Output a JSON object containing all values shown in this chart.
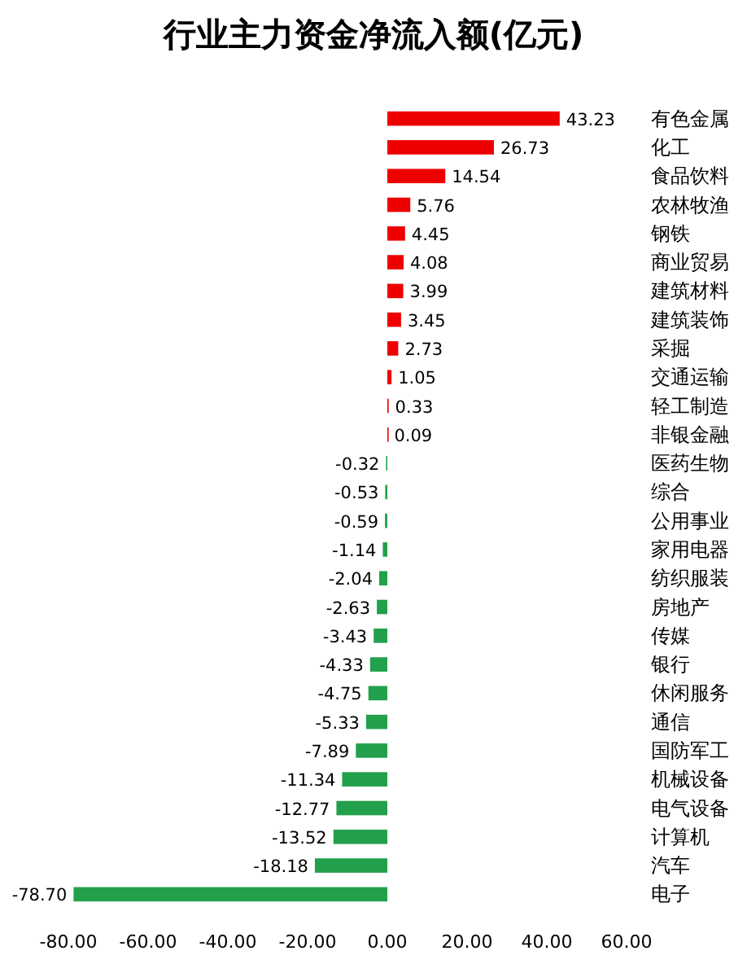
{
  "chart_data": {
    "type": "bar",
    "orientation": "horizontal",
    "title": "行业主力资金净流入额(亿元)",
    "categories": [
      "有色金属",
      "化工",
      "食品饮料",
      "农林牧渔",
      "钢铁",
      "商业贸易",
      "建筑材料",
      "建筑装饰",
      "采掘",
      "交通运输",
      "轻工制造",
      "非银金融",
      "医药生物",
      "综合",
      "公用事业",
      "家用电器",
      "纺织服装",
      "房地产",
      "传媒",
      "银行",
      "休闲服务",
      "通信",
      "国防军工",
      "机械设备",
      "电气设备",
      "计算机",
      "汽车",
      "电子"
    ],
    "values": [
      43.23,
      26.73,
      14.54,
      5.76,
      4.45,
      4.08,
      3.99,
      3.45,
      2.73,
      1.05,
      0.33,
      0.09,
      -0.32,
      -0.53,
      -0.59,
      -1.14,
      -2.04,
      -2.63,
      -3.43,
      -4.33,
      -4.75,
      -5.33,
      -7.89,
      -11.34,
      -12.77,
      -13.52,
      -18.18,
      -78.7
    ],
    "value_labels": [
      "43.23",
      "26.73",
      "14.54",
      "5.76",
      "4.45",
      "4.08",
      "3.99",
      "3.45",
      "2.73",
      "1.05",
      "0.33",
      "0.09",
      "-0.32",
      "-0.53",
      "-0.59",
      "-1.14",
      "-2.04",
      "-2.63",
      "-3.43",
      "-4.33",
      "-4.75",
      "-5.33",
      "-7.89",
      "-11.34",
      "-12.77",
      "-13.52",
      "-18.18",
      "-78.70"
    ],
    "colors": [
      "#ee0000",
      "#ee0000",
      "#ee0000",
      "#ee0000",
      "#ee0000",
      "#ee0000",
      "#ee0000",
      "#ee0000",
      "#ee0000",
      "#ee0000",
      "#ee0000",
      "#ee0000",
      "#22a04b",
      "#22a04b",
      "#22a04b",
      "#22a04b",
      "#22a04b",
      "#22a04b",
      "#22a04b",
      "#22a04b",
      "#22a04b",
      "#22a04b",
      "#22a04b",
      "#22a04b",
      "#22a04b",
      "#22a04b",
      "#22a04b",
      "#22a04b"
    ],
    "xlim": [
      -80,
      60
    ],
    "xticks": [
      {
        "value": -80,
        "label": "-80.00"
      },
      {
        "value": -60,
        "label": "-60.00"
      },
      {
        "value": -40,
        "label": "-40.00"
      },
      {
        "value": -20,
        "label": "-20.00"
      },
      {
        "value": 0,
        "label": "0.00"
      },
      {
        "value": 20,
        "label": "20.00"
      },
      {
        "value": 40,
        "label": "40.00"
      },
      {
        "value": 60,
        "label": "60.00"
      }
    ],
    "grid": false
  }
}
